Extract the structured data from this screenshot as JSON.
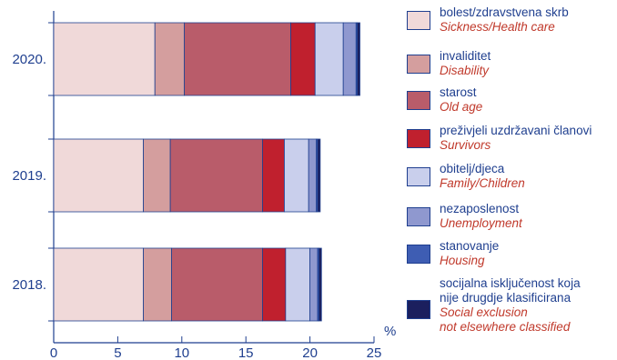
{
  "chart_data": {
    "type": "bar",
    "orientation": "horizontal",
    "stacked": true,
    "categories": [
      "2020.",
      "2019.",
      "2018."
    ],
    "xlim": [
      0,
      25
    ],
    "xticks": [
      0,
      5,
      10,
      15,
      20,
      25
    ],
    "unit_label": "%",
    "grid": false,
    "legend_position": "right",
    "series": [
      {
        "name_hr": "bolest/zdravstvena skrb",
        "name_en": "Sickness/Health care",
        "color": "#f0d9d9",
        "values": [
          7.9,
          7.0,
          7.0
        ]
      },
      {
        "name_hr": "invaliditet",
        "name_en": "Disability",
        "color": "#d49e9e",
        "values": [
          2.3,
          2.1,
          2.2
        ]
      },
      {
        "name_hr": "starost",
        "name_en": "Old age",
        "color": "#b95c6a",
        "values": [
          8.3,
          7.2,
          7.1
        ]
      },
      {
        "name_hr": "preživjeli uzdržavani članovi",
        "name_en": "Survivors",
        "color": "#c0202e",
        "values": [
          1.9,
          1.7,
          1.8
        ]
      },
      {
        "name_hr": "obitelj/djeca",
        "name_en": "Family/Children",
        "color": "#c9cfec",
        "values": [
          2.2,
          1.9,
          1.9
        ]
      },
      {
        "name_hr": "nezaposlenost",
        "name_en": "Unemployment",
        "color": "#8f98cf",
        "values": [
          1.0,
          0.6,
          0.6
        ]
      },
      {
        "name_hr": "stanovanje",
        "name_en": "Housing",
        "color": "#3e5db3",
        "values": [
          0.1,
          0.1,
          0.1
        ]
      },
      {
        "name_hr": "socijalna isključenost koja nije drugdje klasificirana",
        "name_en": "Social exclusion not elsewhere classified",
        "color": "#1b1f5e",
        "values": [
          0.2,
          0.2,
          0.2
        ]
      }
    ],
    "legend_lines": [
      {
        "hr": [
          "bolest/zdravstvena skrb"
        ],
        "en": [
          "Sickness/Health care"
        ]
      },
      {
        "hr": [
          "invaliditet"
        ],
        "en": [
          "Disability"
        ]
      },
      {
        "hr": [
          "starost"
        ],
        "en": [
          "Old age"
        ]
      },
      {
        "hr": [
          "preživjeli uzdržavani članovi"
        ],
        "en": [
          "Survivors"
        ]
      },
      {
        "hr": [
          "obitelj/djeca"
        ],
        "en": [
          "Family/Children"
        ]
      },
      {
        "hr": [
          "nezaposlenost"
        ],
        "en": [
          "Unemployment"
        ]
      },
      {
        "hr": [
          "stanovanje"
        ],
        "en": [
          "Housing"
        ]
      },
      {
        "hr": [
          "socijalna isključenost koja",
          "nije drugdje klasificirana"
        ],
        "en": [
          "Social exclusion",
          "not elsewhere classified"
        ]
      }
    ]
  }
}
